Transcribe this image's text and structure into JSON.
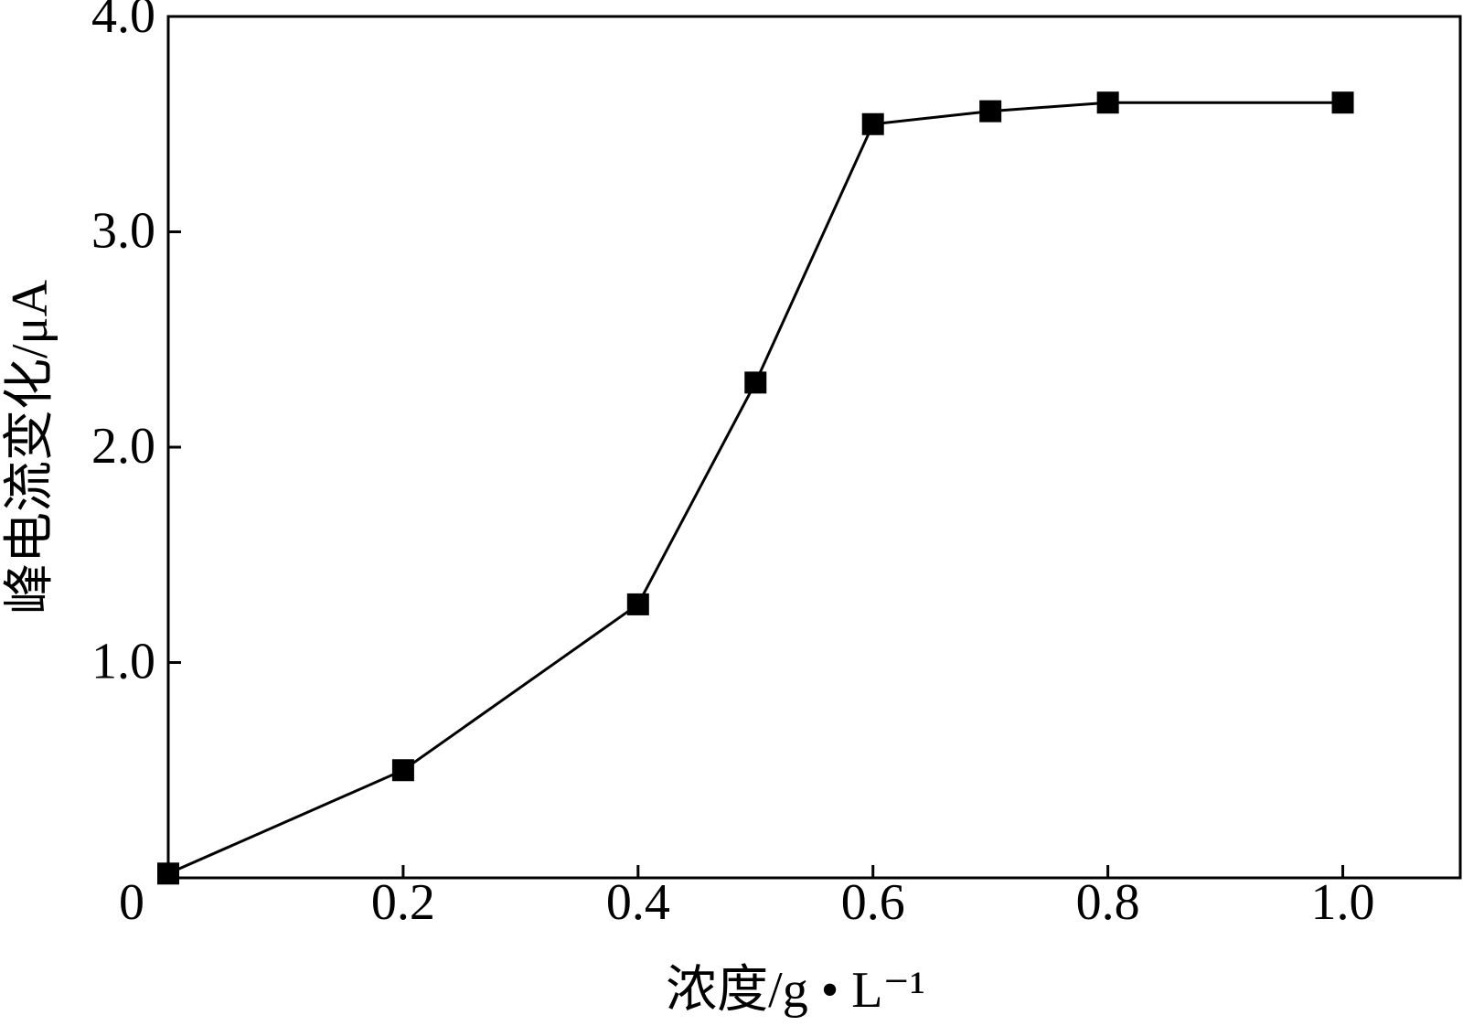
{
  "chart_data": {
    "type": "line",
    "x_label": "浓度/g • L⁻¹",
    "y_label": "峰电流变化/μA",
    "x": [
      0,
      0.2,
      0.4,
      0.5,
      0.6,
      0.7,
      0.8,
      1.0
    ],
    "series": [
      {
        "color": "#000000",
        "values": [
          0.02,
          0.5,
          1.27,
          2.3,
          3.5,
          3.56,
          3.6,
          3.6
        ]
      }
    ],
    "xlim": [
      0,
      1.1
    ],
    "ylim": [
      0,
      4
    ],
    "xticks": [
      0,
      0.2,
      0.4,
      0.6,
      0.8,
      {
        "value": 1,
        "label": "1.0"
      }
    ],
    "yticks": [
      {
        "value": 1,
        "label": "1.0"
      },
      {
        "value": 2,
        "label": "2.0"
      },
      {
        "value": 3,
        "label": "3.0"
      },
      {
        "value": 4,
        "label": "4.0"
      }
    ],
    "grid": false
  }
}
